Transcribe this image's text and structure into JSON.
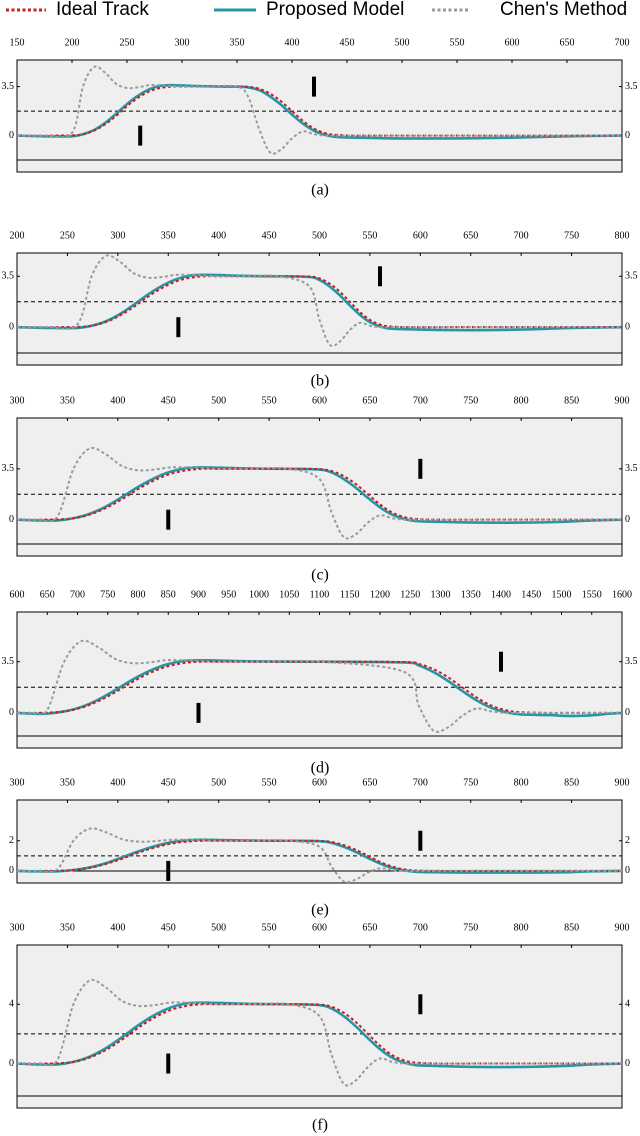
{
  "chart_data": [
    {
      "type": "line",
      "label": "(a)",
      "x": [
        150,
        175,
        200,
        210,
        220,
        230,
        240,
        250,
        260,
        270,
        280,
        290,
        300,
        325,
        350,
        360,
        370,
        380,
        390,
        400,
        410,
        420,
        430,
        440,
        460,
        500,
        550,
        600,
        650,
        700
      ],
      "xlim": [
        150,
        700
      ],
      "xticks": [
        150,
        200,
        250,
        300,
        350,
        400,
        450,
        500,
        550,
        600,
        650,
        700
      ],
      "ylim": [
        -2.6,
        5.4
      ],
      "yticks": [
        0,
        3.5
      ],
      "lane_divider": 1.75,
      "obstacles": [
        {
          "x": 262,
          "y": 0
        },
        {
          "x": 420,
          "y": 3.5
        }
      ],
      "series": [
        {
          "name": "Ideal Track",
          "color": "#cc1f1f",
          "line_style": "dashed",
          "values": [
            0,
            0,
            0.02,
            0.1,
            0.35,
            0.8,
            1.4,
            2.1,
            2.7,
            3.15,
            3.4,
            3.5,
            3.5,
            3.5,
            3.5,
            3.48,
            3.35,
            3.0,
            2.45,
            1.75,
            1.05,
            0.5,
            0.18,
            0.05,
            0,
            0,
            0,
            0,
            0,
            0
          ]
        },
        {
          "name": "Proposed Model",
          "color": "#2596a6",
          "line_style": "solid",
          "values": [
            0,
            -0.05,
            -0.05,
            0.1,
            0.4,
            0.9,
            1.55,
            2.25,
            2.85,
            3.3,
            3.55,
            3.6,
            3.58,
            3.52,
            3.5,
            3.45,
            3.25,
            2.8,
            2.2,
            1.5,
            0.85,
            0.35,
            0.05,
            -0.1,
            -0.15,
            -0.2,
            -0.2,
            -0.15,
            -0.05,
            0
          ]
        },
        {
          "name": "Chen's Method",
          "color": "#9a9a9a",
          "line_style": "dashed",
          "values": [
            0,
            0,
            0.2,
            3.5,
            4.9,
            4.5,
            3.7,
            3.4,
            3.45,
            3.6,
            3.6,
            3.55,
            3.5,
            3.5,
            3.5,
            2.8,
            0.5,
            -1.2,
            -1.0,
            -0.2,
            0.3,
            0.1,
            0,
            0,
            0,
            0,
            0,
            0,
            0,
            0
          ]
        }
      ]
    },
    {
      "type": "line",
      "label": "(b)",
      "x": [
        200,
        230,
        260,
        274,
        288,
        302,
        316,
        330,
        344,
        358,
        372,
        386,
        400,
        430,
        460,
        490,
        500,
        510,
        520,
        530,
        540,
        550,
        560,
        570,
        590,
        630,
        670,
        710,
        750,
        800
      ],
      "xlim": [
        200,
        800
      ],
      "xticks": [
        200,
        250,
        300,
        350,
        400,
        450,
        500,
        550,
        600,
        650,
        700,
        750,
        800
      ],
      "ylim": [
        -2.6,
        5.1
      ],
      "yticks": [
        0,
        3.5
      ],
      "lane_divider": 1.75,
      "obstacles": [
        {
          "x": 360,
          "y": 0
        },
        {
          "x": 560,
          "y": 3.5
        }
      ],
      "series": [
        {
          "color": "#cc1f1f",
          "line_style": "dashed",
          "values": [
            0,
            0,
            0.02,
            0.1,
            0.35,
            0.8,
            1.4,
            2.1,
            2.7,
            3.15,
            3.4,
            3.5,
            3.5,
            3.5,
            3.5,
            3.48,
            3.35,
            3.0,
            2.45,
            1.75,
            1.05,
            0.5,
            0.18,
            0.05,
            0,
            0,
            0,
            0,
            0,
            0
          ]
        },
        {
          "color": "#2596a6",
          "line_style": "solid",
          "values": [
            0,
            -0.05,
            -0.05,
            0.1,
            0.4,
            0.9,
            1.55,
            2.25,
            2.85,
            3.3,
            3.55,
            3.6,
            3.58,
            3.52,
            3.5,
            3.45,
            3.25,
            2.8,
            2.2,
            1.5,
            0.85,
            0.35,
            0.05,
            -0.1,
            -0.15,
            -0.2,
            -0.2,
            -0.15,
            -0.05,
            0
          ]
        },
        {
          "color": "#9a9a9a",
          "line_style": "dashed",
          "values": [
            0,
            0,
            0.2,
            3.5,
            4.9,
            4.5,
            3.7,
            3.4,
            3.45,
            3.6,
            3.6,
            3.55,
            3.5,
            3.5,
            3.5,
            2.8,
            0.5,
            -1.2,
            -1.0,
            -0.2,
            0.3,
            0.1,
            0,
            0,
            0,
            0,
            0,
            0,
            0,
            0
          ]
        }
      ]
    },
    {
      "type": "line",
      "label": "(c)",
      "x": [
        300,
        320,
        340,
        356,
        372,
        388,
        404,
        420,
        436,
        452,
        468,
        484,
        500,
        535,
        570,
        600,
        612,
        624,
        636,
        648,
        660,
        672,
        684,
        696,
        720,
        760,
        800,
        840,
        870,
        900
      ],
      "xlim": [
        300,
        900
      ],
      "xticks": [
        300,
        350,
        400,
        450,
        500,
        550,
        600,
        650,
        700,
        750,
        800,
        850,
        900
      ],
      "ylim": [
        -2.5,
        7
      ],
      "yticks": [
        0,
        3.5
      ],
      "lane_divider": 1.75,
      "obstacles": [
        {
          "x": 450,
          "y": 0
        },
        {
          "x": 700,
          "y": 3.5
        }
      ],
      "series": [
        {
          "color": "#cc1f1f",
          "line_style": "dashed",
          "values": [
            0,
            0,
            0.02,
            0.1,
            0.35,
            0.8,
            1.4,
            2.1,
            2.7,
            3.15,
            3.4,
            3.5,
            3.5,
            3.5,
            3.5,
            3.48,
            3.35,
            3.0,
            2.45,
            1.75,
            1.05,
            0.5,
            0.18,
            0.05,
            0,
            0,
            0,
            0,
            0,
            0
          ]
        },
        {
          "color": "#2596a6",
          "line_style": "solid",
          "values": [
            0,
            -0.05,
            -0.05,
            0.1,
            0.4,
            0.9,
            1.55,
            2.25,
            2.85,
            3.3,
            3.55,
            3.6,
            3.58,
            3.52,
            3.5,
            3.45,
            3.25,
            2.8,
            2.2,
            1.5,
            0.85,
            0.35,
            0.05,
            -0.1,
            -0.15,
            -0.2,
            -0.2,
            -0.15,
            -0.05,
            0
          ]
        },
        {
          "color": "#9a9a9a",
          "line_style": "dashed",
          "values": [
            0,
            0,
            0.2,
            3.5,
            4.9,
            4.5,
            3.7,
            3.4,
            3.45,
            3.6,
            3.6,
            3.55,
            3.5,
            3.5,
            3.5,
            2.8,
            0.5,
            -1.2,
            -1.0,
            -0.2,
            0.3,
            0.1,
            0,
            0,
            0,
            0,
            0,
            0,
            0,
            0
          ]
        }
      ]
    },
    {
      "type": "line",
      "label": "(d)",
      "x": [
        600,
        625,
        650,
        678,
        706,
        734,
        762,
        790,
        818,
        846,
        874,
        902,
        930,
        1000,
        1100,
        1240,
        1264,
        1288,
        1312,
        1336,
        1360,
        1384,
        1408,
        1432,
        1480,
        1505,
        1530,
        1555,
        1580,
        1600
      ],
      "xlim": [
        600,
        1600
      ],
      "xticks": [
        600,
        650,
        700,
        750,
        800,
        850,
        900,
        950,
        1000,
        1050,
        1100,
        1150,
        1200,
        1250,
        1300,
        1350,
        1400,
        1450,
        1500,
        1550,
        1600
      ],
      "ylim": [
        -2.4,
        6.9
      ],
      "yticks": [
        0,
        3.5
      ],
      "lane_divider": 1.75,
      "obstacles": [
        {
          "x": 900,
          "y": 0
        },
        {
          "x": 1400,
          "y": 3.5
        }
      ],
      "series": [
        {
          "color": "#cc1f1f",
          "line_style": "dashed",
          "values": [
            0,
            0,
            0.02,
            0.1,
            0.35,
            0.8,
            1.4,
            2.1,
            2.7,
            3.15,
            3.4,
            3.5,
            3.5,
            3.5,
            3.5,
            3.48,
            3.35,
            3.0,
            2.45,
            1.75,
            1.05,
            0.5,
            0.18,
            0.05,
            0,
            0,
            0,
            0,
            0,
            0
          ]
        },
        {
          "color": "#2596a6",
          "line_style": "solid",
          "values": [
            0,
            -0.05,
            -0.05,
            0.1,
            0.4,
            0.9,
            1.55,
            2.25,
            2.85,
            3.3,
            3.55,
            3.6,
            3.58,
            3.52,
            3.5,
            3.45,
            3.25,
            2.8,
            2.2,
            1.5,
            0.85,
            0.35,
            0.05,
            -0.1,
            -0.15,
            -0.2,
            -0.2,
            -0.15,
            -0.05,
            0
          ]
        },
        {
          "color": "#9a9a9a",
          "line_style": "dashed",
          "values": [
            0,
            0,
            0.2,
            3.5,
            4.9,
            4.5,
            3.7,
            3.4,
            3.45,
            3.6,
            3.6,
            3.55,
            3.5,
            3.5,
            3.5,
            2.8,
            0.5,
            -1.2,
            -1.0,
            -0.2,
            0.3,
            0.1,
            0,
            0,
            0,
            0,
            0,
            0,
            0,
            0
          ]
        }
      ]
    },
    {
      "type": "line",
      "label": "(e)",
      "x": [
        300,
        320,
        340,
        356,
        372,
        388,
        404,
        420,
        436,
        452,
        468,
        484,
        500,
        535,
        570,
        600,
        612,
        624,
        636,
        648,
        660,
        672,
        684,
        696,
        720,
        760,
        800,
        840,
        870,
        900
      ],
      "xlim": [
        300,
        900
      ],
      "xticks": [
        300,
        350,
        400,
        450,
        500,
        550,
        600,
        650,
        700,
        750,
        800,
        850,
        900
      ],
      "ylim": [
        -0.8,
        4.7
      ],
      "yticks": [
        0,
        2
      ],
      "lane_divider": 1,
      "obstacles": [
        {
          "x": 450,
          "y": 0
        },
        {
          "x": 700,
          "y": 2
        }
      ],
      "series": [
        {
          "color": "#cc1f1f",
          "line_style": "dashed",
          "values": [
            0,
            0,
            0.01,
            0.06,
            0.2,
            0.46,
            0.8,
            1.2,
            1.54,
            1.8,
            1.94,
            2,
            2,
            2,
            2,
            1.99,
            1.91,
            1.71,
            1.4,
            1,
            0.6,
            0.29,
            0.1,
            0.03,
            0,
            0,
            0,
            0,
            0,
            0
          ]
        },
        {
          "color": "#2596a6",
          "line_style": "solid",
          "values": [
            0,
            -0.03,
            -0.03,
            0.06,
            0.23,
            0.51,
            0.89,
            1.29,
            1.63,
            1.89,
            2.03,
            2.06,
            2.05,
            2.01,
            2,
            1.97,
            1.86,
            1.6,
            1.26,
            0.86,
            0.49,
            0.2,
            0.03,
            -0.06,
            -0.09,
            -0.11,
            -0.11,
            -0.09,
            -0.03,
            0
          ]
        },
        {
          "color": "#9a9a9a",
          "line_style": "dashed",
          "values": [
            0,
            0,
            0.11,
            2,
            2.8,
            2.57,
            2.11,
            1.94,
            1.97,
            2.06,
            2.06,
            2.03,
            2,
            2,
            2,
            1.6,
            0.29,
            -0.69,
            -0.57,
            -0.11,
            0.17,
            0.06,
            0,
            0,
            0,
            0,
            0,
            0,
            0,
            0
          ]
        }
      ]
    },
    {
      "type": "line",
      "label": "(f)",
      "x": [
        300,
        320,
        340,
        356,
        372,
        388,
        404,
        420,
        436,
        452,
        468,
        484,
        500,
        535,
        570,
        600,
        612,
        624,
        636,
        648,
        660,
        672,
        684,
        696,
        720,
        760,
        800,
        840,
        870,
        900
      ],
      "xlim": [
        300,
        900
      ],
      "xticks": [
        300,
        350,
        400,
        450,
        500,
        550,
        600,
        650,
        700,
        750,
        800,
        850,
        900
      ],
      "ylim": [
        -3,
        8
      ],
      "yticks": [
        0,
        4
      ],
      "lane_divider": 2,
      "obstacles": [
        {
          "x": 450,
          "y": 0
        },
        {
          "x": 700,
          "y": 4
        }
      ],
      "series": [
        {
          "color": "#cc1f1f",
          "line_style": "dashed",
          "values": [
            0,
            0,
            0.02,
            0.11,
            0.4,
            0.91,
            1.6,
            2.4,
            3.09,
            3.6,
            3.89,
            4,
            4,
            4,
            4,
            3.98,
            3.83,
            3.43,
            2.8,
            2,
            1.2,
            0.57,
            0.21,
            0.06,
            0,
            0,
            0,
            0,
            0,
            0
          ]
        },
        {
          "color": "#2596a6",
          "line_style": "solid",
          "values": [
            0,
            -0.06,
            -0.06,
            0.11,
            0.46,
            1.03,
            1.77,
            2.57,
            3.26,
            3.77,
            4.06,
            4.11,
            4.09,
            4.02,
            4,
            3.94,
            3.71,
            3.2,
            2.51,
            1.71,
            0.97,
            0.4,
            0.06,
            -0.11,
            -0.17,
            -0.23,
            -0.23,
            -0.17,
            -0.06,
            0
          ]
        },
        {
          "color": "#9a9a9a",
          "line_style": "dashed",
          "values": [
            0,
            0,
            0.23,
            4,
            5.6,
            5.14,
            4.23,
            3.89,
            3.94,
            4.11,
            4.11,
            4.06,
            4,
            4,
            4,
            3.2,
            0.57,
            -1.37,
            -1.14,
            -0.23,
            0.34,
            0.11,
            0,
            0,
            0,
            0,
            0,
            0,
            0,
            0
          ]
        }
      ]
    }
  ]
}
